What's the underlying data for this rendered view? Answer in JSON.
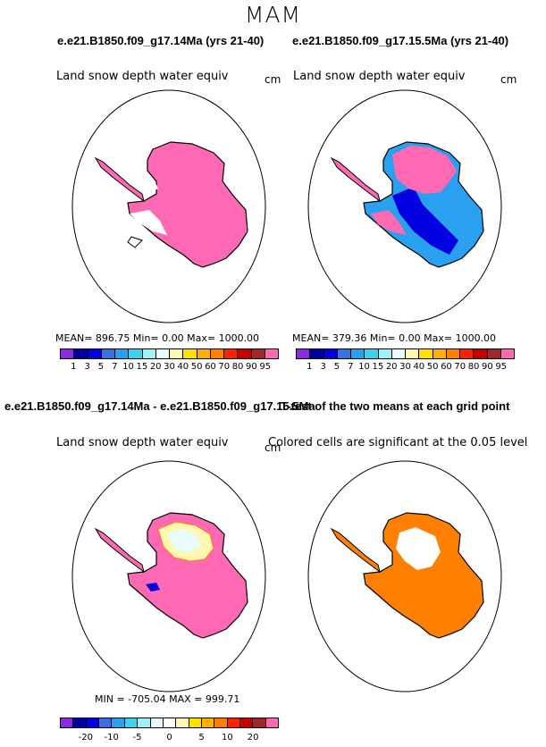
{
  "title": "MAM",
  "panels": [
    {
      "case": "e.e21.B1850.f09_g17.14Ma (yrs 21-40)",
      "variable": "Land snow depth water equiv",
      "unit": "cm",
      "stats": "MEAN= 896.75   Min=     0.00   Max= 1000.00"
    },
    {
      "case": "e.e21.B1850.f09_g17.15.5Ma (yrs 21-40)",
      "variable": "Land snow depth water equiv",
      "unit": "cm",
      "stats": "MEAN= 379.36   Min=     0.00   Max= 1000.00"
    },
    {
      "case": "e.e21.B1850.f09_g17.14Ma - e.e21.B1850.f09_g17.15.5Ma",
      "variable": "Land snow depth water equiv",
      "unit": "cm",
      "stats": "MIN = -705.04  MAX = 999.71"
    },
    {
      "case": "T-test of the two means at each grid point",
      "variable": "Colored cells are significant at the 0.05 level"
    }
  ],
  "colorbar_abs": {
    "labels": [
      "1",
      "3",
      "5",
      "7",
      "10",
      "15",
      "20",
      "30",
      "40",
      "50",
      "60",
      "70",
      "80",
      "90",
      "95"
    ],
    "colors": [
      "#8a2be2",
      "#0000a0",
      "#0000e0",
      "#3a6fe0",
      "#2aa0f0",
      "#40d0f0",
      "#a0f0f8",
      "#e8fcff",
      "#fff8b0",
      "#ffe000",
      "#ffb000",
      "#ff8000",
      "#ff2000",
      "#c80000",
      "#a02828",
      "#ff69b4"
    ]
  },
  "colorbar_diff": {
    "labels": [
      "-20",
      "-10",
      "-5",
      "0",
      "5",
      "10",
      "20"
    ],
    "colors": [
      "#8a2be2",
      "#0000a0",
      "#0000e0",
      "#3a6fe0",
      "#2aa0f0",
      "#40d0f0",
      "#a0f0f8",
      "#e8fcff",
      "#ffffff",
      "#fff8b0",
      "#ffe000",
      "#ffb000",
      "#ff8000",
      "#ff2000",
      "#c80000",
      "#a02828",
      "#ff69b4"
    ]
  }
}
